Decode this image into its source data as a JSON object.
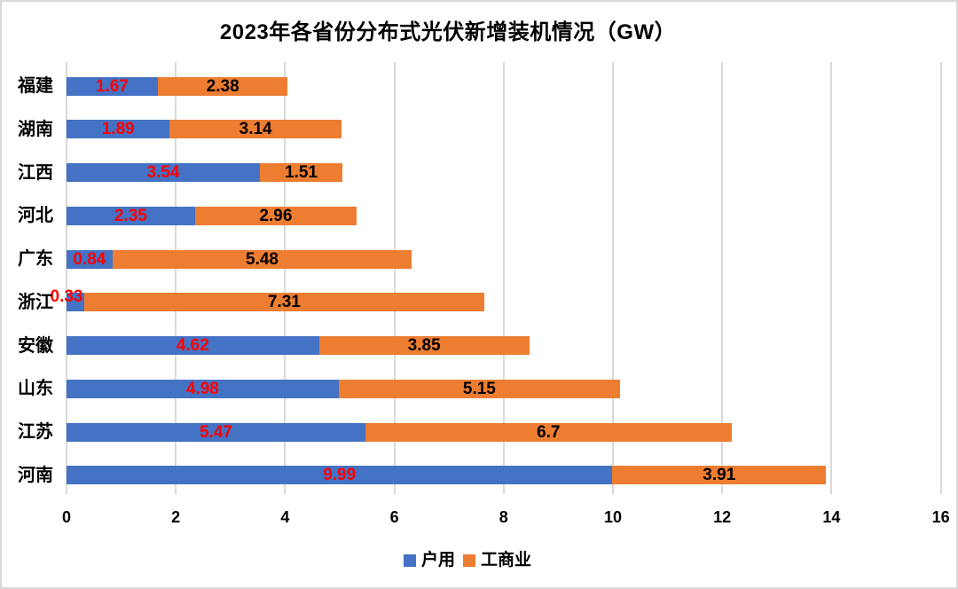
{
  "title": "2023年各省份分布式光伏新增装机情况（GW）",
  "colors": {
    "household_bar": "#4472C4",
    "commercial_bar": "#ED7D31",
    "household_label_text": "#FF0000",
    "commercial_label_text": "#000000",
    "gridline": "#D9D9D9",
    "outer_border": "#D9D9D9",
    "title_text": "#000000"
  },
  "chart_data": {
    "type": "bar",
    "orientation": "horizontal",
    "stacked": true,
    "title": "2023年各省份分布式光伏新增装机情况（GW）",
    "categories": [
      "福建",
      "湖南",
      "江西",
      "河北",
      "广东",
      "浙江",
      "安徽",
      "山东",
      "江苏",
      "河南"
    ],
    "series": [
      {
        "name": "户用",
        "color": "#4472C4",
        "label_color": "#FF0000",
        "values": [
          1.67,
          1.89,
          3.54,
          2.35,
          0.84,
          0.33,
          4.62,
          4.98,
          5.47,
          9.99
        ]
      },
      {
        "name": "工商业",
        "color": "#ED7D31",
        "label_color": "#000000",
        "values": [
          2.38,
          3.14,
          1.51,
          2.96,
          5.48,
          7.31,
          3.85,
          5.15,
          6.7,
          3.91
        ]
      }
    ],
    "x_ticks": [
      0,
      2,
      4,
      6,
      8,
      10,
      12,
      14,
      16
    ],
    "xlim": [
      0,
      16
    ],
    "grid": "vertical",
    "legend": [
      "户用",
      "工商业"
    ],
    "legend_position": "bottom"
  }
}
